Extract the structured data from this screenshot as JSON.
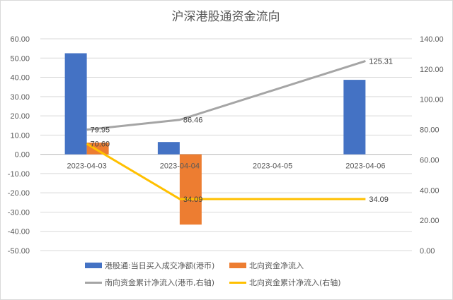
{
  "chart_data": {
    "type": "bar+line",
    "title": "沪深港股通资金流向",
    "categories": [
      "2023-04-03",
      "2023-04-04",
      "2023-04-05",
      "2023-04-06"
    ],
    "left_axis": {
      "ylim": [
        -50,
        60
      ],
      "ticks": [
        "60.00",
        "50.00",
        "40.00",
        "30.00",
        "20.00",
        "10.00",
        "0.00",
        "-10.00",
        "-20.00",
        "-30.00",
        "-40.00",
        "-50.00"
      ]
    },
    "right_axis": {
      "ylim": [
        0,
        140
      ],
      "ticks": [
        "140.00",
        "120.00",
        "100.00",
        "80.00",
        "60.00",
        "40.00",
        "20.00",
        "0.00"
      ]
    },
    "series": [
      {
        "name": "港股通:当日买入成交净额(港币)",
        "type": "bar",
        "axis": "left",
        "color": "#4472C4",
        "values": [
          52.5,
          6.4,
          null,
          38.7
        ]
      },
      {
        "name": "北向资金净流入",
        "type": "bar",
        "axis": "left",
        "color": "#ED7D31",
        "values": [
          6.1,
          -36.5,
          null,
          null
        ]
      },
      {
        "name": "南向资金累计净流入(港币,右轴)",
        "type": "line",
        "axis": "right",
        "color": "#A5A5A5",
        "values": [
          79.95,
          86.46,
          null,
          125.31
        ],
        "labels": [
          "79.95",
          "86.46",
          "",
          "125.31"
        ]
      },
      {
        "name": "北向资金累计净流入(右轴)",
        "type": "line",
        "axis": "right",
        "color": "#FFC000",
        "values": [
          70.6,
          34.09,
          34.09,
          34.09
        ],
        "labels": [
          "70.60",
          "34.09",
          "",
          "34.09"
        ]
      }
    ],
    "grid": true,
    "legend_position": "bottom"
  }
}
